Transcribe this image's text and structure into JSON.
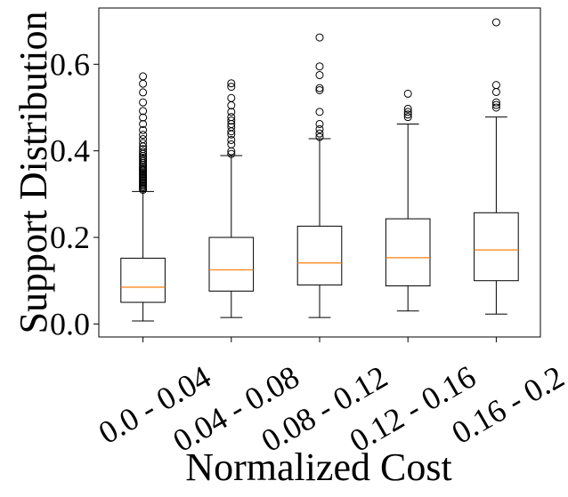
{
  "chart_data": {
    "type": "boxplot",
    "title": "",
    "xlabel": "Normalized Cost",
    "ylabel": "Support Distribution",
    "ylim": [
      -0.03,
      0.73
    ],
    "yticks": [
      0.0,
      0.2,
      0.4,
      0.6
    ],
    "ytick_labels": [
      "0.0",
      "0.2",
      "0.4",
      "0.6"
    ],
    "categories": [
      "0.0 - 0.04",
      "0.04 - 0.08",
      "0.08 - 0.12",
      "0.12 - 0.16",
      "0.16 - 0.2"
    ],
    "boxes": [
      {
        "category": "0.0 - 0.04",
        "whisker_low": 0.007,
        "q1": 0.05,
        "median": 0.085,
        "q3": 0.152,
        "whisker_high": 0.306,
        "outliers": [
          0.31,
          0.313,
          0.316,
          0.319,
          0.322,
          0.325,
          0.328,
          0.331,
          0.334,
          0.337,
          0.34,
          0.343,
          0.346,
          0.349,
          0.352,
          0.355,
          0.358,
          0.361,
          0.364,
          0.368,
          0.372,
          0.376,
          0.38,
          0.384,
          0.388,
          0.393,
          0.398,
          0.404,
          0.41,
          0.418,
          0.427,
          0.437,
          0.448,
          0.462,
          0.477,
          0.492,
          0.512,
          0.535,
          0.555,
          0.572
        ]
      },
      {
        "category": "0.04 - 0.08",
        "whisker_low": 0.015,
        "q1": 0.076,
        "median": 0.125,
        "q3": 0.2,
        "whisker_high": 0.389,
        "outliers": [
          0.393,
          0.399,
          0.415,
          0.425,
          0.438,
          0.445,
          0.455,
          0.462,
          0.47,
          0.478,
          0.49,
          0.505,
          0.522,
          0.548,
          0.556
        ]
      },
      {
        "category": "0.08 - 0.12",
        "whisker_low": 0.015,
        "q1": 0.09,
        "median": 0.141,
        "q3": 0.226,
        "whisker_high": 0.428,
        "outliers": [
          0.432,
          0.44,
          0.45,
          0.462,
          0.49,
          0.54,
          0.545,
          0.575,
          0.595,
          0.662
        ]
      },
      {
        "category": "0.12 - 0.16",
        "whisker_low": 0.03,
        "q1": 0.088,
        "median": 0.153,
        "q3": 0.243,
        "whisker_high": 0.462,
        "outliers": [
          0.478,
          0.484,
          0.49,
          0.497,
          0.532
        ]
      },
      {
        "category": "0.16 - 0.2",
        "whisker_low": 0.023,
        "q1": 0.1,
        "median": 0.171,
        "q3": 0.257,
        "whisker_high": 0.478,
        "outliers": [
          0.5,
          0.506,
          0.512,
          0.536,
          0.552,
          0.697
        ]
      }
    ],
    "colors": {
      "box": "#000000",
      "median": "#ff7f0e",
      "outlier": "#000000",
      "background": "#ffffff"
    }
  }
}
